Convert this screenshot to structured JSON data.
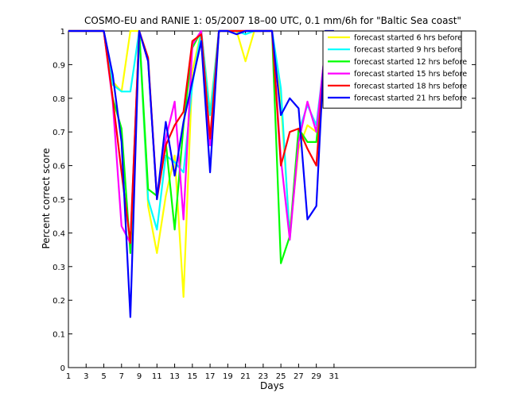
{
  "chart_data": {
    "type": "line",
    "title": "COSMO-EU and RANIE 1: 05/2007 18–00 UTC, 0.1 mm/6h for \"Baltic Sea coast\"",
    "xlabel": "Days",
    "ylabel": "Percent correct score",
    "xlim": [
      1,
      31
    ],
    "ylim": [
      0,
      1
    ],
    "x_ticks": [
      "1",
      "3",
      "5",
      "7",
      "9",
      "11",
      "13",
      "15",
      "17",
      "19",
      "21",
      "23",
      "25",
      "27",
      "29",
      "31"
    ],
    "y_ticks": [
      "0",
      "0.1",
      "0.2",
      "0.3",
      "0.4",
      "0.5",
      "0.6",
      "0.7",
      "0.8",
      "0.9",
      "1"
    ],
    "grid": false,
    "legend_position": "top-right",
    "series": [
      {
        "name": "forecast started 6 hrs before",
        "color": "#ffff00",
        "x": [
          1,
          2,
          3,
          4,
          5,
          6,
          7,
          8,
          9,
          10,
          11,
          12,
          13,
          14,
          15,
          16,
          17,
          18,
          19,
          20,
          21,
          22,
          23,
          24,
          25,
          26,
          27,
          28,
          29,
          30,
          31
        ],
        "y": [
          1,
          1,
          1,
          1,
          1,
          0.85,
          0.82,
          1,
          1,
          0.48,
          0.34,
          0.51,
          0.63,
          0.21,
          0.88,
          1,
          0.76,
          1,
          1,
          1,
          0.91,
          1,
          1,
          1,
          0.79,
          0.4,
          0.65,
          0.72,
          0.7,
          0.89,
          1
        ]
      },
      {
        "name": "forecast started 9 hrs before",
        "color": "#00ffff",
        "x": [
          1,
          2,
          3,
          4,
          5,
          6,
          7,
          8,
          9,
          10,
          11,
          12,
          13,
          14,
          15,
          16,
          17,
          18,
          19,
          20,
          21,
          22,
          23,
          24,
          25,
          26,
          27,
          28,
          29,
          30,
          31
        ],
        "y": [
          1,
          1,
          1,
          1,
          1,
          0.84,
          0.82,
          0.82,
          1,
          0.5,
          0.41,
          0.63,
          0.61,
          0.58,
          0.84,
          1,
          0.75,
          1,
          1,
          1,
          0.99,
          1,
          1,
          1,
          0.83,
          0.38,
          0.7,
          0.78,
          0.72,
          0.94,
          1
        ]
      },
      {
        "name": "forecast started 12 hrs before",
        "color": "#00ff00",
        "x": [
          1,
          2,
          3,
          4,
          5,
          6,
          7,
          8,
          9,
          10,
          11,
          12,
          13,
          14,
          15,
          16,
          17,
          18,
          19,
          20,
          21,
          22,
          23,
          24,
          25,
          26,
          27,
          28,
          29,
          30,
          31
        ],
        "y": [
          1,
          1,
          1,
          1,
          1,
          0.8,
          0.71,
          0.34,
          1,
          0.53,
          0.51,
          0.67,
          0.41,
          0.72,
          0.95,
          1,
          0.67,
          1,
          1,
          1,
          1,
          1,
          1,
          1,
          0.31,
          0.39,
          0.71,
          0.67,
          0.67,
          0.93,
          1
        ]
      },
      {
        "name": "forecast started 15 hrs before",
        "color": "#ff00ff",
        "x": [
          1,
          2,
          3,
          4,
          5,
          6,
          7,
          8,
          9,
          10,
          11,
          12,
          13,
          14,
          15,
          16,
          17,
          18,
          19,
          20,
          21,
          22,
          23,
          24,
          25,
          26,
          27,
          28,
          29,
          30,
          31
        ],
        "y": [
          1,
          1,
          1,
          1,
          1,
          0.79,
          0.42,
          0.37,
          1,
          0.91,
          0.51,
          0.68,
          0.79,
          0.44,
          0.96,
          1,
          0.66,
          1,
          1,
          1,
          1,
          1,
          1,
          1,
          0.62,
          0.38,
          0.67,
          0.79,
          0.7,
          0.95,
          1
        ]
      },
      {
        "name": "forecast started 18 hrs before",
        "color": "#ff0000",
        "x": [
          1,
          2,
          3,
          4,
          5,
          6,
          7,
          8,
          9,
          10,
          11,
          12,
          13,
          14,
          15,
          16,
          17,
          18,
          19,
          20,
          21,
          22,
          23,
          24,
          25,
          26,
          27,
          28,
          29,
          30,
          31
        ],
        "y": [
          1,
          1,
          1,
          1,
          1,
          0.8,
          0.58,
          0.37,
          1,
          0.92,
          0.5,
          0.66,
          0.72,
          0.76,
          0.97,
          0.99,
          0.68,
          1,
          1,
          1,
          1,
          1,
          1,
          1,
          0.6,
          0.7,
          0.71,
          0.65,
          0.6,
          0.96,
          1
        ]
      },
      {
        "name": "forecast started 21 hrs before",
        "color": "#0000ff",
        "x": [
          1,
          2,
          3,
          4,
          5,
          6,
          7,
          8,
          9,
          10,
          11,
          12,
          13,
          14,
          15,
          16,
          17,
          18,
          19,
          20,
          21,
          22,
          23,
          24,
          25,
          26,
          27,
          28,
          29,
          30,
          31
        ],
        "y": [
          1,
          1,
          1,
          1,
          1,
          0.87,
          0.67,
          0.15,
          1,
          0.91,
          0.5,
          0.73,
          0.57,
          0.73,
          0.85,
          0.97,
          0.58,
          1,
          1,
          0.99,
          1,
          1,
          1,
          1,
          0.75,
          0.8,
          0.77,
          0.44,
          0.48,
          1,
          1
        ]
      }
    ]
  }
}
